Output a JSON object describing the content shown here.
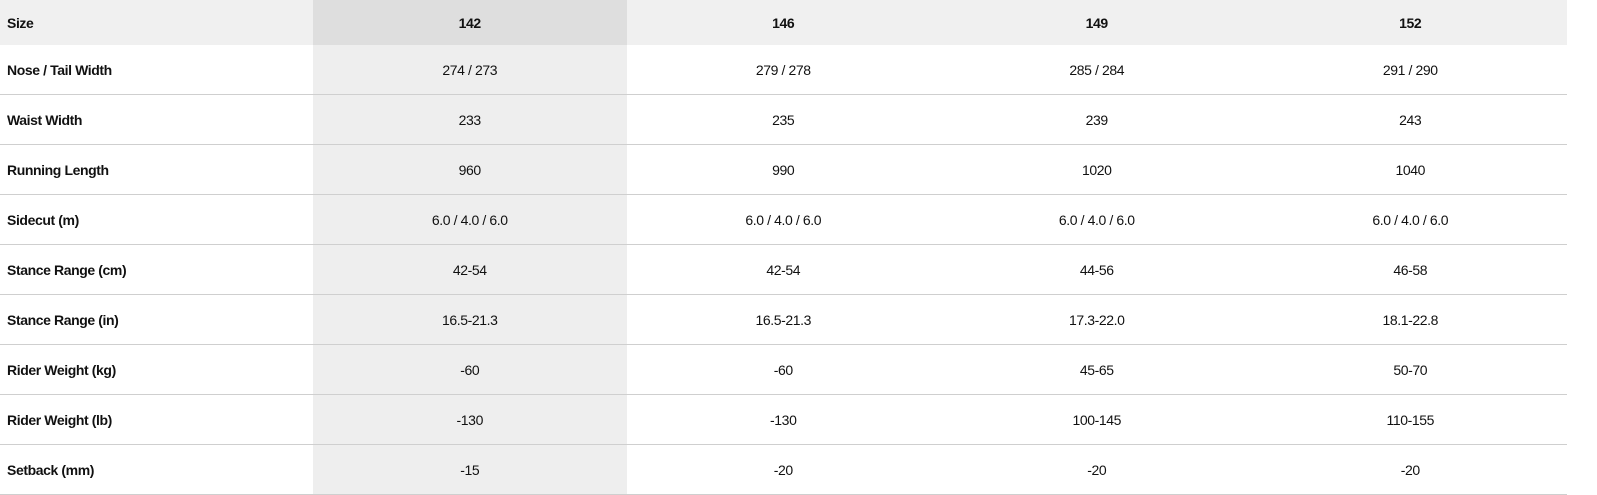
{
  "table": {
    "header": {
      "label": "Size",
      "sizes": [
        "142",
        "146",
        "149",
        "152"
      ]
    },
    "rows": [
      {
        "label": "Nose / Tail Width",
        "values": [
          "274 / 273",
          "279 / 278",
          "285 / 284",
          "291 / 290"
        ]
      },
      {
        "label": "Waist Width",
        "values": [
          "233",
          "235",
          "239",
          "243"
        ]
      },
      {
        "label": "Running Length",
        "values": [
          "960",
          "990",
          "1020",
          "1040"
        ]
      },
      {
        "label": "Sidecut (m)",
        "values": [
          "6.0 / 4.0 / 6.0",
          "6.0 / 4.0 / 6.0",
          "6.0 / 4.0 / 6.0",
          "6.0 / 4.0 / 6.0"
        ]
      },
      {
        "label": "Stance Range (cm)",
        "values": [
          "42-54",
          "42-54",
          "44-56",
          "46-58"
        ]
      },
      {
        "label": "Stance Range (in)",
        "values": [
          "16.5-21.3",
          "16.5-21.3",
          "17.3-22.0",
          "18.1-22.8"
        ]
      },
      {
        "label": "Rider Weight (kg)",
        "values": [
          "-60",
          "-60",
          "45-65",
          "50-70"
        ]
      },
      {
        "label": "Rider Weight (lb)",
        "values": [
          "-130",
          "-130",
          "100-145",
          "110-155"
        ]
      },
      {
        "label": "Setback (mm)",
        "values": [
          "-15",
          "-20",
          "-20",
          "-20"
        ]
      }
    ],
    "colors": {
      "header_bg": "#f0f0f0",
      "highlight_header_bg": "#dedede",
      "highlight_column_bg": "#eeeeee",
      "divider": "#cfcfcf"
    }
  }
}
